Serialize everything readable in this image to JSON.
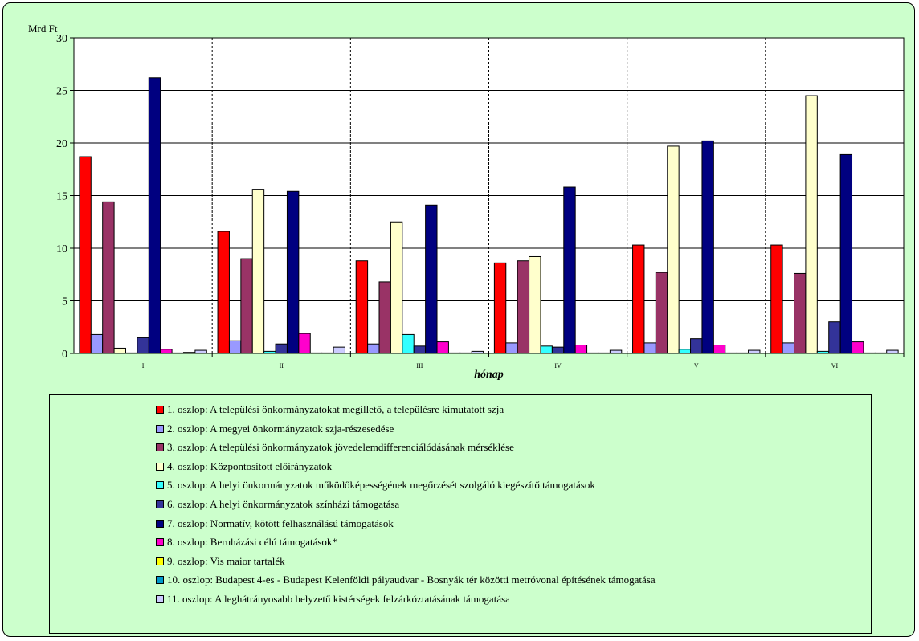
{
  "chart_data": {
    "type": "bar",
    "ylabel": "Mrd Ft",
    "xlabel": "hónap",
    "ylim": [
      0,
      30
    ],
    "yticks": [
      0,
      5,
      10,
      15,
      20,
      25,
      30
    ],
    "categories": [
      "I",
      "II",
      "III",
      "IV",
      "V",
      "VI"
    ],
    "grid": "dashed vertical separators between months",
    "legend_position": "bottom",
    "series": [
      {
        "name": "1. oszlop: A települési önkormányzatokat megillető, a településre kimutatott szja",
        "color": "#ff0000",
        "values": [
          18.7,
          11.6,
          8.8,
          8.6,
          10.3,
          10.3
        ]
      },
      {
        "name": "2. oszlop: A megyei önkormányzatok szja-részesedése",
        "color": "#9999ff",
        "values": [
          1.8,
          1.2,
          0.9,
          1.0,
          1.0,
          1.0
        ]
      },
      {
        "name": "3. oszlop: A települési önkormányzatok jövedelemdifferenciálódásának mérséklése",
        "color": "#993366",
        "values": [
          14.4,
          9.0,
          6.8,
          8.8,
          7.7,
          7.6
        ]
      },
      {
        "name": "4. oszlop: Központosított előirányzatok",
        "color": "#ffffcc",
        "values": [
          0.5,
          15.6,
          12.5,
          9.2,
          19.7,
          24.5
        ]
      },
      {
        "name": "5. oszlop: A helyi önkormányzatok működőképességének megőrzését szolgáló kiegészítő támogatások",
        "color": "#33ffff",
        "values": [
          0.0,
          0.2,
          1.8,
          0.7,
          0.4,
          0.2
        ]
      },
      {
        "name": "6. oszlop: A helyi önkormányzatok színházi támogatása",
        "color": "#333399",
        "values": [
          1.5,
          0.9,
          0.7,
          0.6,
          1.4,
          3.0
        ]
      },
      {
        "name": "7. oszlop: Normatív, kötött felhasználású támogatások",
        "color": "#000080",
        "values": [
          26.2,
          15.4,
          14.1,
          15.8,
          20.2,
          18.9
        ]
      },
      {
        "name": "8. oszlop: Beruházási célú támogatások*",
        "color": "#ff00cc",
        "values": [
          0.4,
          1.9,
          1.1,
          0.8,
          0.8,
          1.1
        ]
      },
      {
        "name": "9. oszlop: Vis maior tartalék",
        "color": "#ffff00",
        "values": [
          0.0,
          0.0,
          0.0,
          0.0,
          0.0,
          0.0
        ]
      },
      {
        "name": "10. oszlop: Budapest 4-es - Budapest Kelenföldi pályaudvar - Bosnyák tér közötti metróvonal építésének támogatása",
        "color": "#0099cc",
        "values": [
          0.1,
          0.0,
          0.0,
          0.0,
          0.0,
          0.0
        ]
      },
      {
        "name": "11. oszlop: A leghátrányosabb helyzetű kistérségek felzárkóztatásának támogatása",
        "color": "#ccccff",
        "values": [
          0.3,
          0.6,
          0.2,
          0.3,
          0.3,
          0.3
        ]
      }
    ]
  }
}
